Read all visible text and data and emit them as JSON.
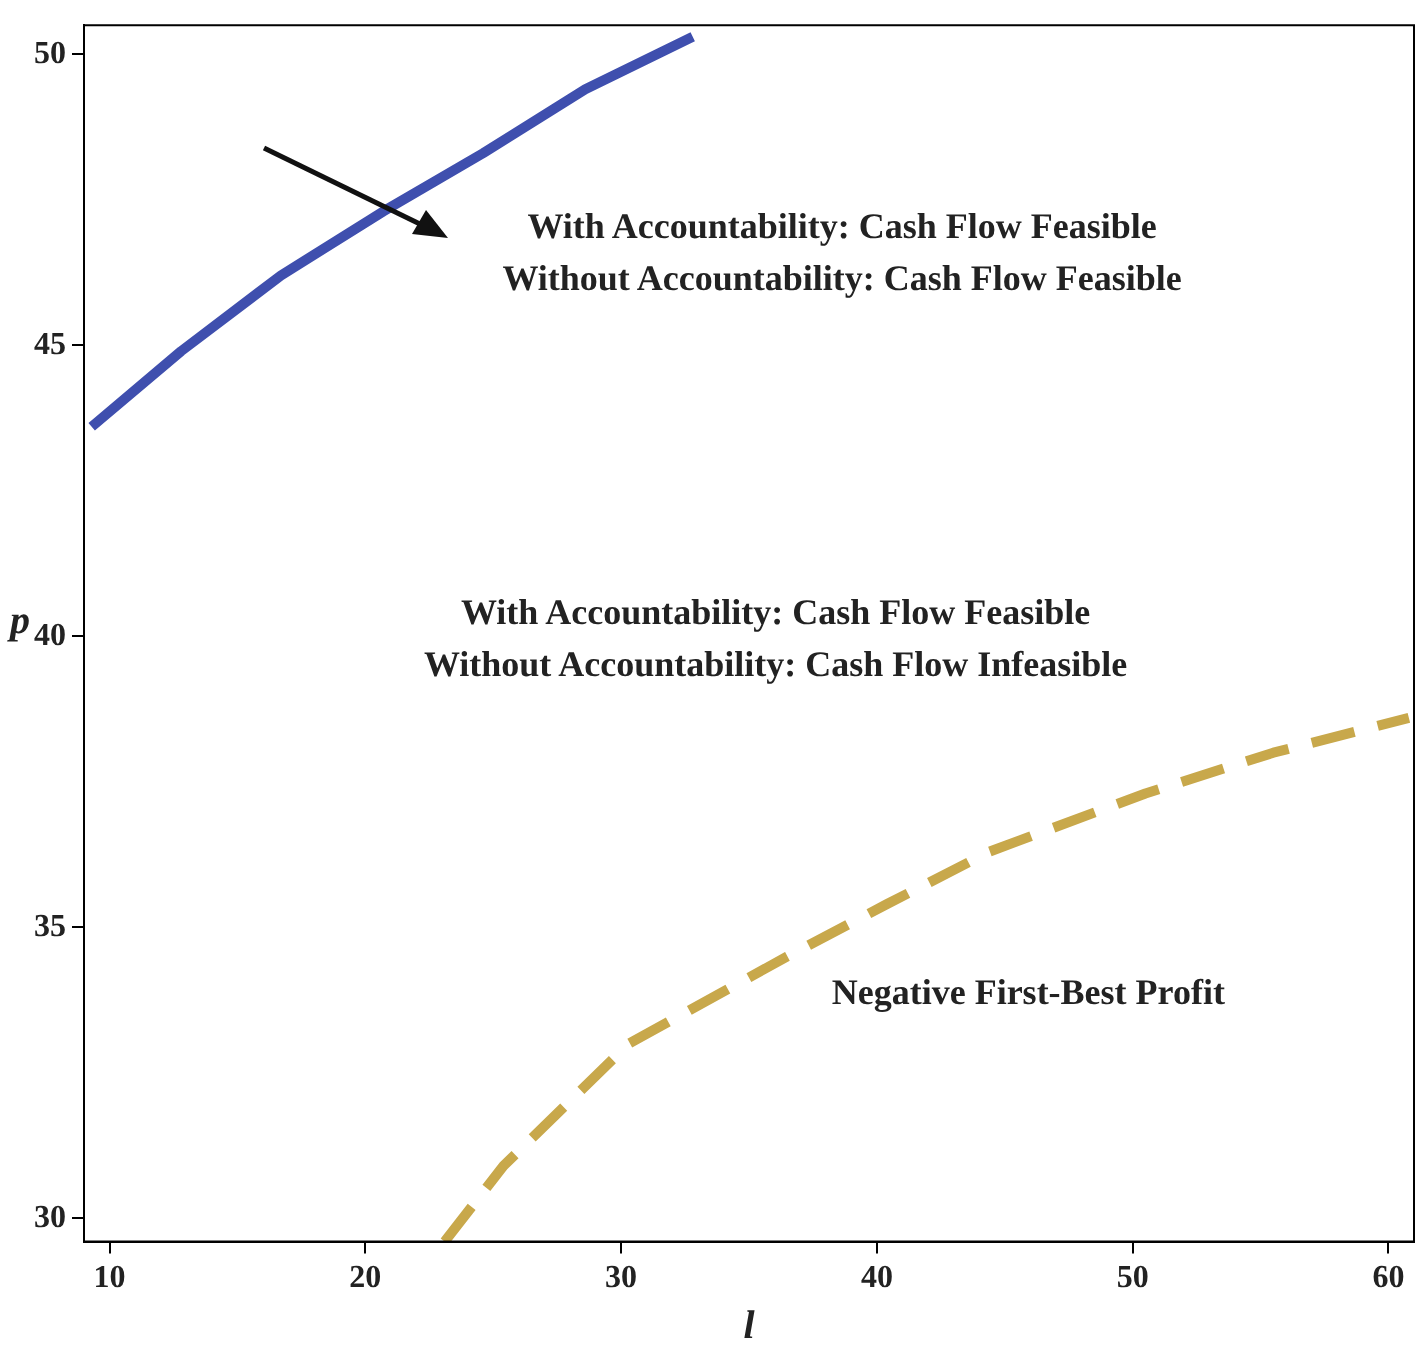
{
  "chart_data": {
    "type": "line",
    "xlabel": "l",
    "ylabel": "p",
    "xlim": [
      9,
      61
    ],
    "ylim": [
      29.6,
      50.5
    ],
    "xticks": [
      10,
      20,
      30,
      40,
      50,
      60
    ],
    "yticks": [
      30,
      35,
      40,
      45,
      50
    ],
    "marker": "none",
    "series": [
      {
        "color": "#3f4fae",
        "line_style": "solid",
        "x": [
          9.3,
          12.8,
          16.7,
          20.7,
          24.6,
          28.6,
          32.8
        ],
        "values": [
          43.6,
          44.9,
          46.2,
          47.3,
          48.3,
          49.4,
          50.3
        ]
      },
      {
        "color": "#c8a84b",
        "line_style": "dashed",
        "x": [
          23.1,
          25.4,
          30.3,
          36.5,
          40.4,
          44.4,
          50.5,
          55.5,
          60.8
        ],
        "values": [
          29.6,
          30.9,
          33.0,
          34.5,
          35.4,
          36.3,
          37.3,
          38.0,
          38.6
        ]
      }
    ],
    "annotations": [
      "With Accountability: Cash Flow Feasible",
      "Without Accountability: Cash Flow Feasible",
      "With Accountability: Cash Flow Feasible",
      "Without Accountability: Cash Flow Infeasible",
      "Negative First-Best Profit"
    ]
  }
}
